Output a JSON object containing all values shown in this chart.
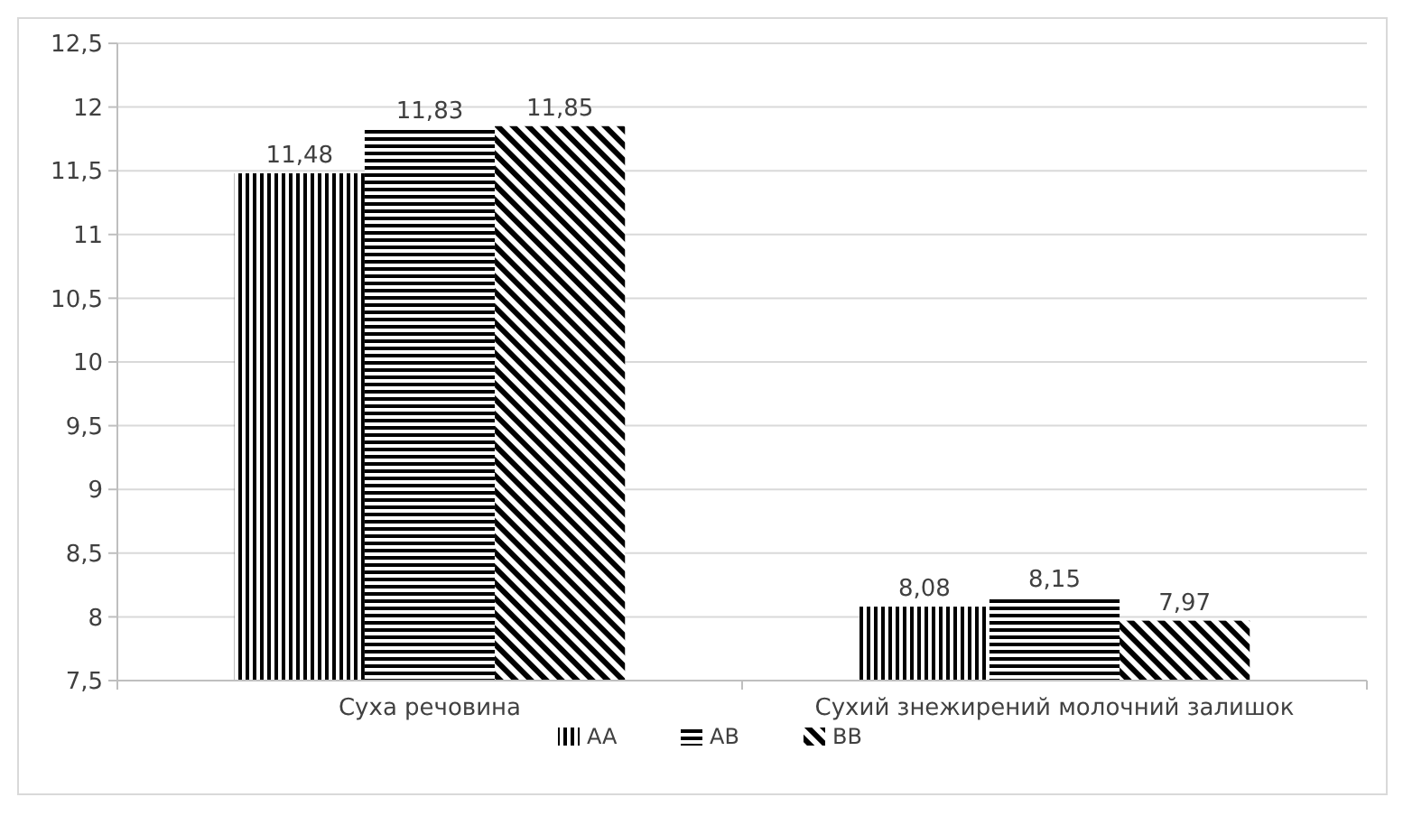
{
  "chart_data": {
    "type": "bar",
    "categories": [
      "Суха речовина",
      "Сухий знежирений молочний залишок"
    ],
    "series": [
      {
        "name": "AA",
        "color": "#000000",
        "values": [
          11.48,
          8.08
        ],
        "value_labels": [
          "11,48",
          "8,08"
        ]
      },
      {
        "name": "AB",
        "color": "#000000",
        "values": [
          11.83,
          8.15
        ],
        "value_labels": [
          "11,83",
          "8,15"
        ]
      },
      {
        "name": "BB",
        "color": "#000000",
        "values": [
          11.85,
          7.97
        ],
        "value_labels": [
          "11,85",
          "7,97"
        ]
      }
    ],
    "ylim": [
      7.5,
      12.5
    ],
    "yticks": [
      {
        "value": 7.5,
        "label": "7,5"
      },
      {
        "value": 8,
        "label": "8"
      },
      {
        "value": 8.5,
        "label": "8,5"
      },
      {
        "value": 9,
        "label": "9"
      },
      {
        "value": 9.5,
        "label": "9,5"
      },
      {
        "value": 10,
        "label": "10"
      },
      {
        "value": 10.5,
        "label": "10,5"
      },
      {
        "value": 11,
        "label": "11"
      },
      {
        "value": 11.5,
        "label": "11,5"
      },
      {
        "value": 12,
        "label": "12"
      },
      {
        "value": 12.5,
        "label": "12,5"
      }
    ],
    "grid": "y",
    "legend": "bottom"
  }
}
